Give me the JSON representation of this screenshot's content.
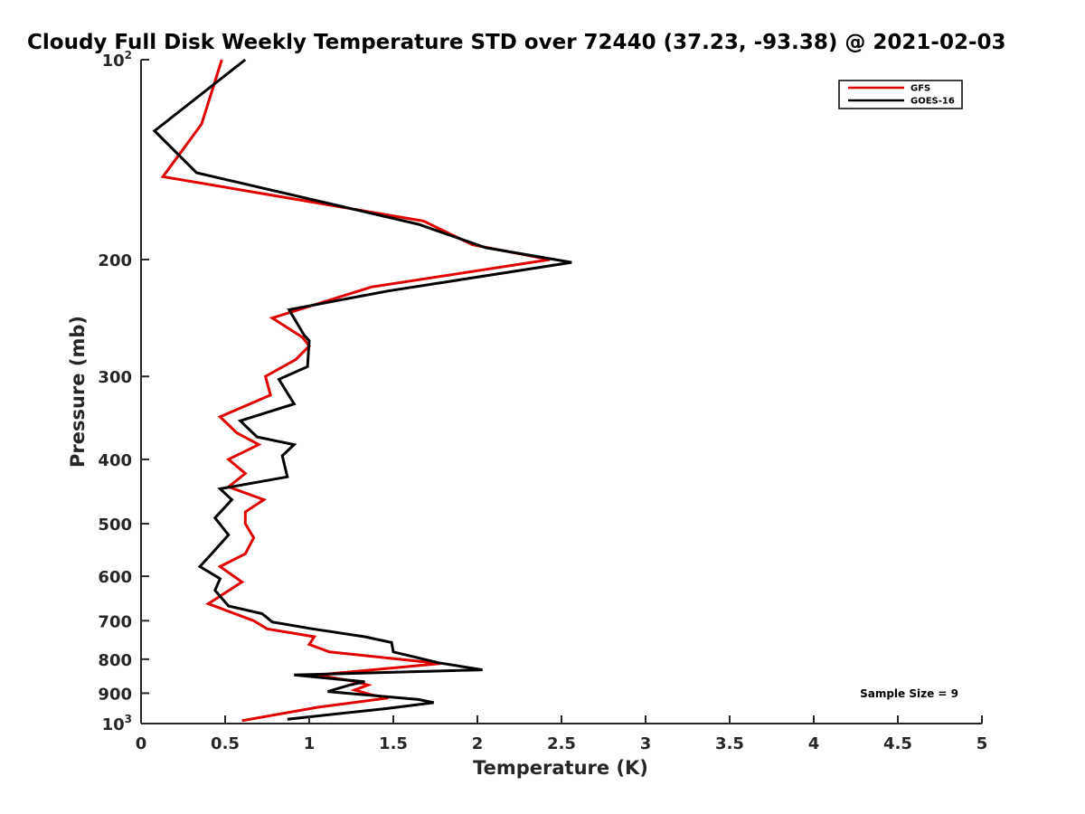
{
  "chart_data": {
    "type": "line",
    "title": "Cloudy Full Disk Weekly Temperature STD over 72440 (37.23, -93.38) @ 2021-02-03",
    "xlabel": "Temperature (K)",
    "ylabel": "Pressure (mb)",
    "xlim": [
      0,
      5
    ],
    "ylim": [
      100,
      1000
    ],
    "y_scale": "log",
    "y_reversed": true,
    "x_ticks": [
      "0",
      "0.5",
      "1",
      "1.5",
      "2",
      "2.5",
      "3",
      "3.5",
      "4",
      "4.5",
      "5"
    ],
    "x_tick_values": [
      0,
      0.5,
      1,
      1.5,
      2,
      2.5,
      3,
      3.5,
      4,
      4.5,
      5
    ],
    "y_ticks": [
      {
        "value": 100,
        "base": "10",
        "exp": "2"
      },
      {
        "value": 200,
        "label": "200"
      },
      {
        "value": 300,
        "label": "300"
      },
      {
        "value": 400,
        "label": "400"
      },
      {
        "value": 500,
        "label": "500"
      },
      {
        "value": 600,
        "label": "600"
      },
      {
        "value": 700,
        "label": "700"
      },
      {
        "value": 800,
        "label": "800"
      },
      {
        "value": 900,
        "label": "900"
      },
      {
        "value": 1000,
        "base": "10",
        "exp": "3"
      }
    ],
    "grid": false,
    "legend_position": "top-right",
    "annotation": "Sample Size = 9",
    "series": [
      {
        "name": "GFS",
        "color": "#e00000",
        "points": [
          [
            0.48,
            100
          ],
          [
            0.36,
            125
          ],
          [
            0.13,
            150
          ],
          [
            1.68,
            175
          ],
          [
            1.97,
            190
          ],
          [
            2.43,
            200
          ],
          [
            1.37,
            220
          ],
          [
            0.78,
            245
          ],
          [
            0.96,
            262
          ],
          [
            1.0,
            270
          ],
          [
            0.92,
            283
          ],
          [
            0.74,
            300
          ],
          [
            0.77,
            320
          ],
          [
            0.47,
            345
          ],
          [
            0.57,
            365
          ],
          [
            0.7,
            380
          ],
          [
            0.52,
            400
          ],
          [
            0.62,
            420
          ],
          [
            0.52,
            440
          ],
          [
            0.73,
            460
          ],
          [
            0.62,
            480
          ],
          [
            0.62,
            500
          ],
          [
            0.67,
            525
          ],
          [
            0.62,
            555
          ],
          [
            0.47,
            580
          ],
          [
            0.6,
            612
          ],
          [
            0.4,
            660
          ],
          [
            0.67,
            700
          ],
          [
            0.75,
            720
          ],
          [
            1.03,
            740
          ],
          [
            1.0,
            760
          ],
          [
            1.12,
            780
          ],
          [
            1.78,
            812
          ],
          [
            1.05,
            845
          ],
          [
            1.28,
            865
          ],
          [
            1.35,
            875
          ],
          [
            1.27,
            890
          ],
          [
            1.37,
            905
          ],
          [
            1.47,
            915
          ],
          [
            1.05,
            945
          ],
          [
            0.6,
            990
          ]
        ]
      },
      {
        "name": "GOES-16",
        "color": "#000000",
        "points": [
          [
            0.62,
            100
          ],
          [
            0.08,
            128
          ],
          [
            0.33,
            148
          ],
          [
            1.65,
            177
          ],
          [
            2.05,
            192
          ],
          [
            2.56,
            202
          ],
          [
            1.47,
            223
          ],
          [
            0.88,
            238
          ],
          [
            0.97,
            260
          ],
          [
            1.0,
            265
          ],
          [
            0.99,
            290
          ],
          [
            0.82,
            303
          ],
          [
            0.91,
            330
          ],
          [
            0.59,
            350
          ],
          [
            0.69,
            370
          ],
          [
            0.91,
            380
          ],
          [
            0.84,
            395
          ],
          [
            0.87,
            425
          ],
          [
            0.47,
            443
          ],
          [
            0.54,
            460
          ],
          [
            0.44,
            490
          ],
          [
            0.52,
            520
          ],
          [
            0.42,
            555
          ],
          [
            0.35,
            580
          ],
          [
            0.47,
            605
          ],
          [
            0.44,
            630
          ],
          [
            0.52,
            665
          ],
          [
            0.72,
            683
          ],
          [
            0.78,
            703
          ],
          [
            1.02,
            720
          ],
          [
            1.33,
            740
          ],
          [
            1.49,
            755
          ],
          [
            1.5,
            780
          ],
          [
            1.77,
            810
          ],
          [
            2.03,
            830
          ],
          [
            0.91,
            845
          ],
          [
            1.33,
            865
          ],
          [
            1.24,
            875
          ],
          [
            1.11,
            895
          ],
          [
            1.65,
            920
          ],
          [
            1.74,
            930
          ],
          [
            1.45,
            950
          ],
          [
            0.87,
            985
          ]
        ]
      }
    ]
  }
}
